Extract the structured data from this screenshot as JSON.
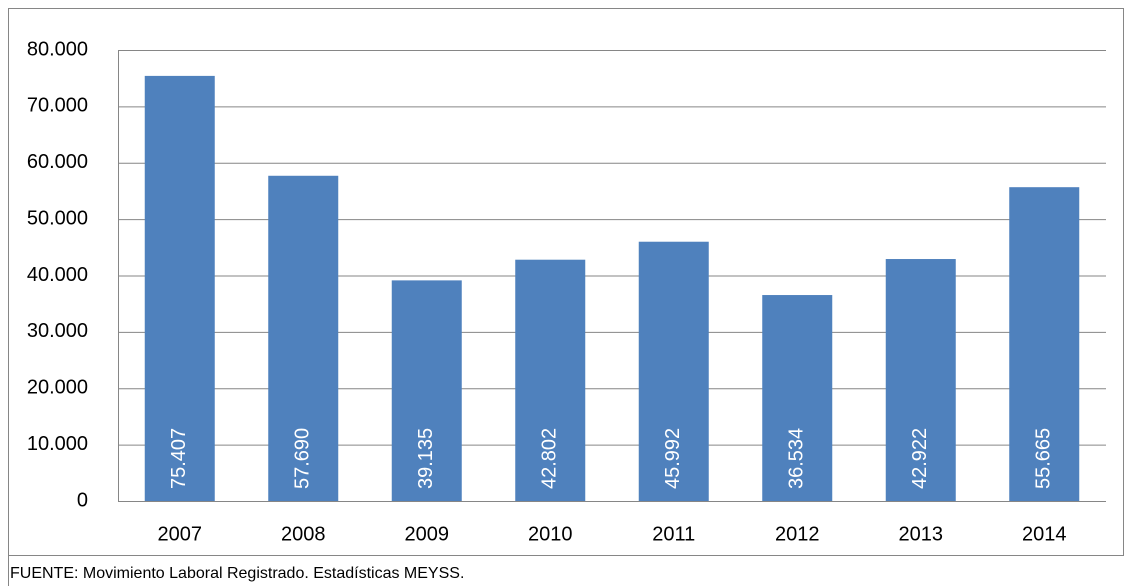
{
  "chart_data": {
    "type": "bar",
    "categories": [
      "2007",
      "2008",
      "2009",
      "2010",
      "2011",
      "2012",
      "2013",
      "2014"
    ],
    "values": [
      75407,
      57690,
      39135,
      42802,
      45992,
      36534,
      42922,
      55665
    ],
    "value_labels": [
      "75.407",
      "57.690",
      "39.135",
      "42.802",
      "45.992",
      "36.534",
      "42.922",
      "55.665"
    ],
    "color": "#4f81bd",
    "ylim": [
      0,
      80000
    ],
    "yticks": [
      0,
      {
        "value": 10000,
        "label": "10.000"
      },
      {
        "value": 20000,
        "label": "20.000"
      },
      {
        "value": 30000,
        "label": "30.000"
      },
      {
        "value": 40000,
        "label": "40.000"
      },
      {
        "value": 50000,
        "label": "50.000"
      },
      {
        "value": 60000,
        "label": "60.000"
      },
      {
        "value": 70000,
        "label": "70.000"
      },
      {
        "value": 80000,
        "label": "80.000"
      }
    ],
    "grid": true,
    "source": "FUENTE: Movimiento Laboral Registrado. Estadísticas MEYSS."
  }
}
